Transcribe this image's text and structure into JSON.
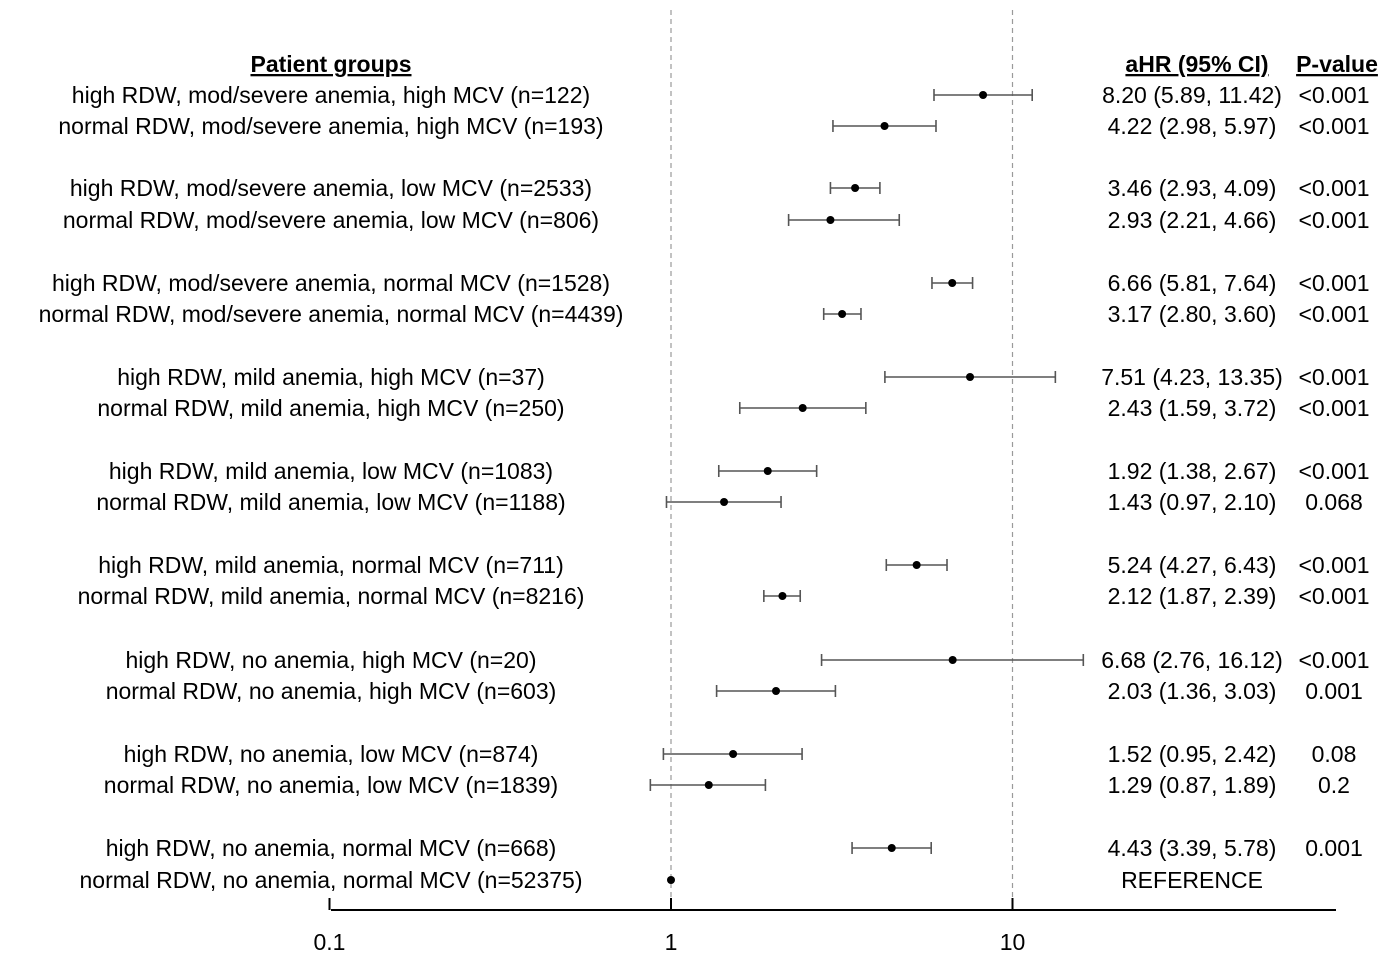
{
  "chart_data": {
    "type": "forest",
    "xscale": "log",
    "xlim": [
      0.1,
      20
    ],
    "xticks": [
      "0.1",
      "1",
      "10"
    ],
    "reference_lines": [
      1,
      10
    ],
    "headers": {
      "groups": "Patient groups",
      "ahr": "aHR (95% CI)",
      "pvalue": "P-value"
    },
    "rows": [
      {
        "label": "high RDW, mod/severe anemia, high MCV (n=122)",
        "hr": 8.2,
        "lo": 5.89,
        "hi": 11.42,
        "ci_text": "8.20 (5.89, 11.42)",
        "p": "<0.001"
      },
      {
        "label": "normal RDW, mod/severe anemia, high MCV  (n=193)",
        "hr": 4.22,
        "lo": 2.98,
        "hi": 5.97,
        "ci_text": "4.22 (2.98, 5.97)",
        "p": "<0.001"
      },
      {
        "label": "high RDW, mod/severe anemia, low MCV (n=2533)",
        "hr": 3.46,
        "lo": 2.93,
        "hi": 4.09,
        "ci_text": "3.46 (2.93, 4.09)",
        "p": "<0.001"
      },
      {
        "label": "normal RDW, mod/severe anemia, low MCV (n=806)",
        "hr": 2.93,
        "lo": 2.21,
        "hi": 4.66,
        "ci_text": "2.93 (2.21, 4.66)",
        "p": "<0.001"
      },
      {
        "label": "high RDW, mod/severe anemia, normal MCV (n=1528)",
        "hr": 6.66,
        "lo": 5.81,
        "hi": 7.64,
        "ci_text": "6.66 (5.81, 7.64)",
        "p": "<0.001"
      },
      {
        "label": "normal RDW, mod/severe anemia, normal MCV (n=4439)",
        "hr": 3.17,
        "lo": 2.8,
        "hi": 3.6,
        "ci_text": "3.17 (2.80, 3.60)",
        "p": "<0.001"
      },
      {
        "label": "high RDW, mild anemia, high MCV (n=37)",
        "hr": 7.51,
        "lo": 4.23,
        "hi": 13.35,
        "ci_text": "7.51 (4.23, 13.35)",
        "p": "<0.001"
      },
      {
        "label": "normal RDW, mild anemia, high MCV (n=250)",
        "hr": 2.43,
        "lo": 1.59,
        "hi": 3.72,
        "ci_text": "2.43 (1.59, 3.72)",
        "p": "<0.001"
      },
      {
        "label": "high RDW, mild anemia, low MCV (n=1083)",
        "hr": 1.92,
        "lo": 1.38,
        "hi": 2.67,
        "ci_text": "1.92 (1.38, 2.67)",
        "p": "<0.001"
      },
      {
        "label": "normal RDW, mild anemia, low MCV (n=1188)",
        "hr": 1.43,
        "lo": 0.97,
        "hi": 2.1,
        "ci_text": "1.43 (0.97, 2.10)",
        "p": "0.068"
      },
      {
        "label": "high RDW, mild anemia, normal MCV (n=711)",
        "hr": 5.24,
        "lo": 4.27,
        "hi": 6.43,
        "ci_text": "5.24 (4.27, 6.43)",
        "p": "<0.001"
      },
      {
        "label": "normal RDW, mild anemia, normal MCV (n=8216)",
        "hr": 2.12,
        "lo": 1.87,
        "hi": 2.39,
        "ci_text": "2.12 (1.87, 2.39)",
        "p": "<0.001"
      },
      {
        "label": "high RDW, no anemia, high MCV (n=20)",
        "hr": 6.68,
        "lo": 2.76,
        "hi": 16.12,
        "ci_text": "6.68 (2.76, 16.12)",
        "p": "<0.001"
      },
      {
        "label": "normal RDW, no anemia, high MCV (n=603)",
        "hr": 2.03,
        "lo": 1.36,
        "hi": 3.03,
        "ci_text": "2.03 (1.36, 3.03)",
        "p": "0.001"
      },
      {
        "label": "high RDW, no anemia, low MCV (n=874)",
        "hr": 1.52,
        "lo": 0.95,
        "hi": 2.42,
        "ci_text": "1.52 (0.95, 2.42)",
        "p": "0.08"
      },
      {
        "label": "normal RDW, no anemia, low MCV (n=1839)",
        "hr": 1.29,
        "lo": 0.87,
        "hi": 1.89,
        "ci_text": "1.29 (0.87, 1.89)",
        "p": "0.2"
      },
      {
        "label": "high RDW, no anemia, normal MCV (n=668)",
        "hr": 4.43,
        "lo": 3.39,
        "hi": 5.78,
        "ci_text": "4.43 (3.39, 5.78)",
        "p": "0.001"
      },
      {
        "label": "normal RDW, no anemia, normal MCV (n=52375)",
        "hr": 1,
        "lo": null,
        "hi": null,
        "ci_text": "REFERENCE",
        "p": ""
      }
    ]
  }
}
